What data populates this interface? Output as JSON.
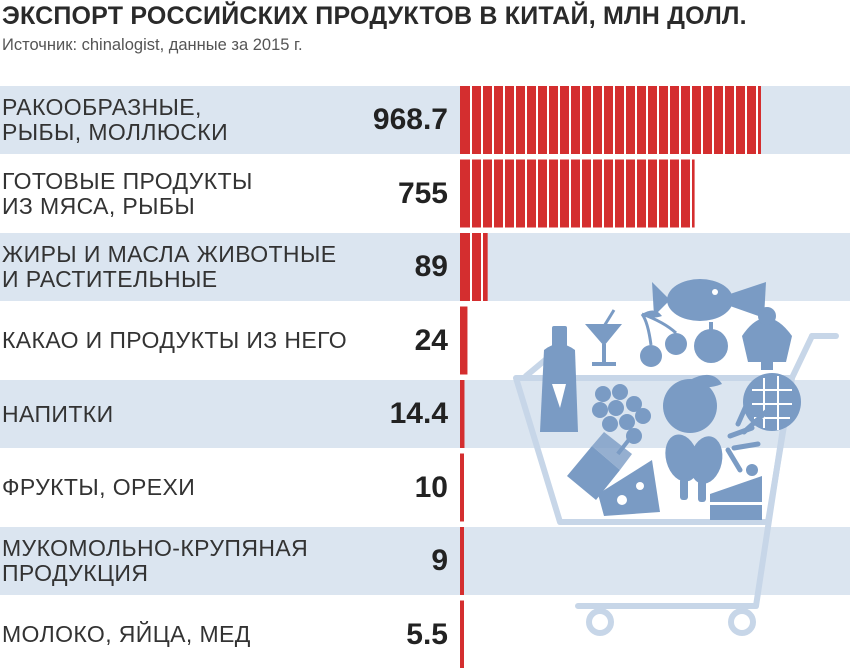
{
  "header": {
    "title": "ЭКСПОРТ РОССИЙСКИХ ПРОДУКТОВ В КИТАЙ, МЛН ДОЛЛ.",
    "subtitle": "Источник: chinalogist, данные за 2015 г."
  },
  "chart_data": {
    "type": "bar",
    "orientation": "horizontal",
    "title": "ЭКСПОРТ РОССИЙСКИХ ПРОДУКТОВ В КИТАЙ, МЛН ДОЛЛ.",
    "subtitle": "Источник: chinalogist, данные за 2015 г.",
    "xlim": [
      0,
      968.7
    ],
    "grid": false,
    "categories": [
      [
        "Ракообразные,",
        "рыбы, моллюски"
      ],
      [
        "Готовые продукты",
        "из мяса, рыбы"
      ],
      [
        "Жиры и масла животные",
        "и растительные"
      ],
      [
        "Какао и продукты из него"
      ],
      [
        "Напитки"
      ],
      [
        "Фрукты, орехи"
      ],
      [
        "Мукомольно-крупяная",
        "продукция"
      ],
      [
        "Молоко, яйца, мед"
      ]
    ],
    "values": [
      968.7,
      755,
      89,
      24,
      14.4,
      10,
      9,
      5.5
    ],
    "value_labels": [
      "968.7",
      "755",
      "89",
      "24",
      "14.4",
      "10",
      "9",
      "5.5"
    ]
  },
  "colors": {
    "bar": "#d42e2f",
    "bar_segment_line": "#ffffff",
    "band": "#dbe5f0",
    "illustration": "#7a9bc4",
    "cart": "#c7d6e8"
  },
  "illustration": {
    "name": "shopping-cart-with-groceries",
    "icons": [
      "bottle-icon",
      "cocktail-icon",
      "fish-icon",
      "cherry-icon",
      "apple-icon",
      "ice-cream-icon",
      "grape-icon",
      "peach-icon",
      "pie-icon",
      "juice-icon",
      "cheese-icon",
      "chicken-leg-icon",
      "fern-icon",
      "cake-icon"
    ]
  }
}
